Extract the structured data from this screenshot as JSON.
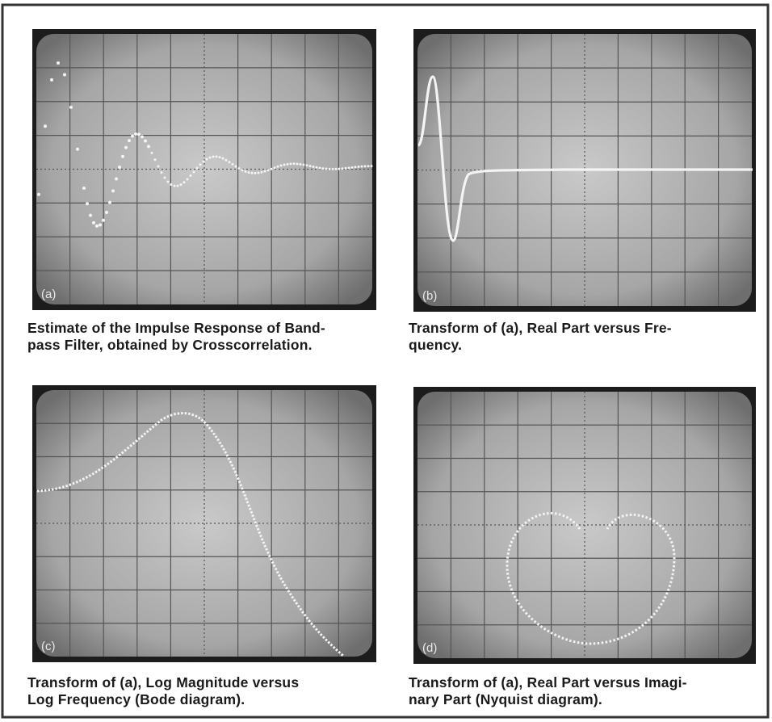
{
  "panels": [
    {
      "label": "(a)",
      "caption": [
        "Estimate of the Impulse Response of Band-",
        "pass Filter, obtained by Crosscorrelation."
      ]
    },
    {
      "label": "(b)",
      "caption": [
        "Transform of (a), Real Part versus Fre-",
        "quency."
      ]
    },
    {
      "label": "(c)",
      "caption": [
        "Transform of (a), Log Magnitude versus",
        "Log Frequency (Bode diagram)."
      ]
    },
    {
      "label": "(d)",
      "caption": [
        "Transform of (a), Real Part versus Imagi-",
        "nary Part (Nyquist diagram)."
      ]
    }
  ]
}
